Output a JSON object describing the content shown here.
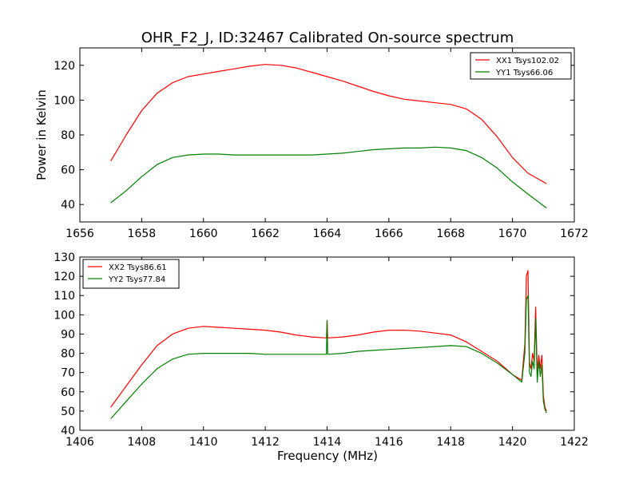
{
  "title": "OHR_F2_J, ID:32467 Calibrated On-source spectrum",
  "chart_data": [
    {
      "type": "line",
      "title": "OHR_F2_J, ID:32467 Calibrated On-source spectrum",
      "xlabel": "",
      "ylabel": "Power in Kelvin",
      "xlim": [
        1656,
        1672
      ],
      "ylim": [
        30,
        130
      ],
      "xticks": [
        1656,
        1658,
        1660,
        1662,
        1664,
        1666,
        1668,
        1670,
        1672
      ],
      "yticks": [
        40,
        60,
        80,
        100,
        120
      ],
      "grid": false,
      "legend": "top-right",
      "series": [
        {
          "name": "XX1 Tsys102.02",
          "color": "#ff0000",
          "x": [
            1657.0,
            1657.5,
            1658.0,
            1658.5,
            1659.0,
            1659.5,
            1660.0,
            1660.5,
            1661.0,
            1661.5,
            1662.0,
            1662.5,
            1663.0,
            1663.5,
            1664.0,
            1664.5,
            1665.0,
            1665.5,
            1666.0,
            1666.5,
            1667.0,
            1667.5,
            1668.0,
            1668.5,
            1669.0,
            1669.5,
            1670.0,
            1670.5,
            1671.1
          ],
          "y": [
            65,
            80,
            94,
            104,
            110,
            113.5,
            115,
            116.5,
            118,
            119.5,
            120.5,
            120,
            118.5,
            116,
            113.5,
            111,
            108,
            105,
            102.5,
            100.5,
            99.5,
            98.5,
            97.5,
            95,
            89,
            79,
            67,
            58,
            52
          ]
        },
        {
          "name": "YY1 Tsys66.06",
          "color": "#008000",
          "x": [
            1657.0,
            1657.5,
            1658.0,
            1658.5,
            1659.0,
            1659.5,
            1660.0,
            1660.5,
            1661.0,
            1661.5,
            1662.0,
            1662.5,
            1663.0,
            1663.5,
            1664.0,
            1664.5,
            1665.0,
            1665.5,
            1666.0,
            1666.5,
            1667.0,
            1667.5,
            1668.0,
            1668.5,
            1669.0,
            1669.5,
            1670.0,
            1670.5,
            1671.1
          ],
          "y": [
            41,
            48,
            56,
            63,
            67,
            68.5,
            69,
            69,
            68.5,
            68.5,
            68.5,
            68.5,
            68.5,
            68.5,
            69,
            69.5,
            70.5,
            71.5,
            72,
            72.5,
            72.5,
            73,
            72.5,
            71,
            67,
            61,
            53,
            46,
            38
          ]
        }
      ]
    },
    {
      "type": "line",
      "title": "",
      "xlabel": "Frequency (MHz)",
      "ylabel": "",
      "xlim": [
        1406,
        1422
      ],
      "ylim": [
        40,
        130
      ],
      "xticks": [
        1406,
        1408,
        1410,
        1412,
        1414,
        1416,
        1418,
        1420,
        1422
      ],
      "yticks": [
        40,
        50,
        60,
        70,
        80,
        90,
        100,
        110,
        120,
        130
      ],
      "grid": false,
      "legend": "top-left",
      "series": [
        {
          "name": "XX2 Tsys86.61",
          "color": "#ff0000",
          "x": [
            1407.0,
            1407.5,
            1408.0,
            1408.5,
            1409.0,
            1409.5,
            1410.0,
            1410.5,
            1411.0,
            1411.5,
            1412.0,
            1412.5,
            1413.0,
            1413.5,
            1413.98,
            1414.0,
            1414.02,
            1414.5,
            1415.0,
            1415.5,
            1416.0,
            1416.5,
            1417.0,
            1417.5,
            1418.0,
            1418.5,
            1419.0,
            1419.5,
            1420.0,
            1420.3,
            1420.4,
            1420.45,
            1420.5,
            1420.55,
            1420.6,
            1420.65,
            1420.7,
            1420.75,
            1420.8,
            1420.85,
            1420.9,
            1420.95,
            1421.0,
            1421.05,
            1421.1
          ],
          "y": [
            52,
            63,
            74,
            84,
            90,
            93,
            94,
            93.5,
            93,
            92.5,
            92,
            91,
            89.5,
            88.5,
            88,
            97,
            88,
            88.5,
            89.5,
            91,
            92,
            92,
            91.5,
            90.5,
            89.5,
            86,
            81,
            76,
            69,
            66,
            85,
            120,
            123,
            75,
            72,
            80,
            76,
            104,
            70,
            79,
            72,
            79,
            58,
            52,
            50
          ]
        },
        {
          "name": "YY2 Tsys77.84",
          "color": "#008000",
          "x": [
            1407.0,
            1407.5,
            1408.0,
            1408.5,
            1409.0,
            1409.5,
            1410.0,
            1410.5,
            1411.0,
            1411.5,
            1412.0,
            1412.5,
            1413.0,
            1413.5,
            1413.98,
            1414.0,
            1414.02,
            1414.5,
            1415.0,
            1415.5,
            1416.0,
            1416.5,
            1417.0,
            1417.5,
            1418.0,
            1418.5,
            1419.0,
            1419.5,
            1420.0,
            1420.3,
            1420.4,
            1420.45,
            1420.5,
            1420.55,
            1420.6,
            1420.65,
            1420.7,
            1420.75,
            1420.8,
            1420.85,
            1420.9,
            1420.95,
            1421.0,
            1421.05,
            1421.1
          ],
          "y": [
            46,
            55,
            64,
            72,
            77,
            79.5,
            80,
            80,
            80,
            80,
            79.5,
            79.5,
            79.5,
            79.5,
            79.5,
            97,
            79.5,
            80,
            81,
            81.5,
            82,
            82.5,
            83,
            83.5,
            84,
            83.5,
            80,
            75,
            69,
            65,
            80,
            108,
            110,
            70,
            68,
            76,
            72,
            98,
            65,
            76,
            68,
            74,
            55,
            51,
            49
          ]
        }
      ]
    }
  ]
}
